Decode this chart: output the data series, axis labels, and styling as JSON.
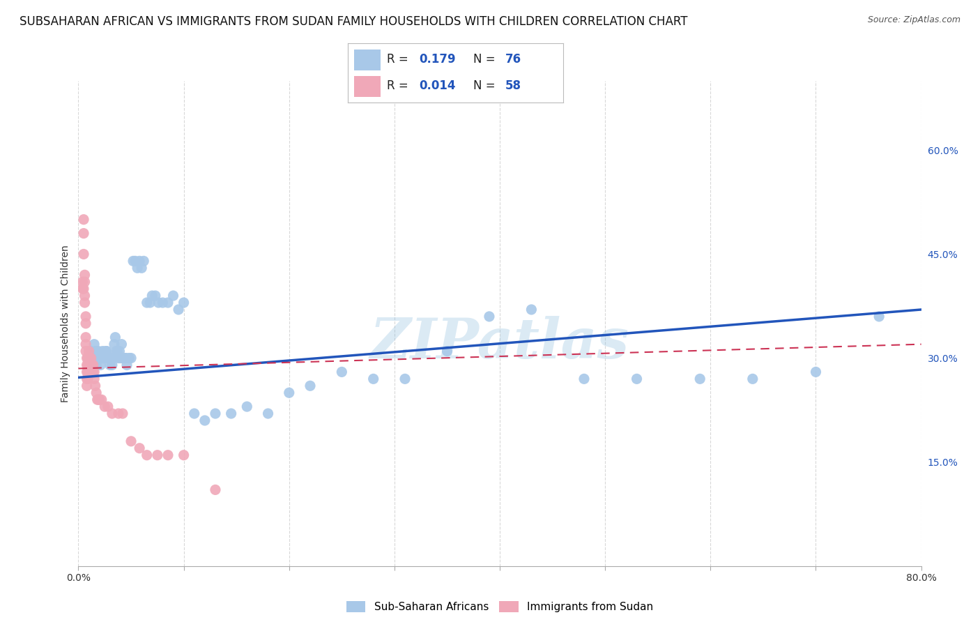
{
  "title": "SUBSAHARAN AFRICAN VS IMMIGRANTS FROM SUDAN FAMILY HOUSEHOLDS WITH CHILDREN CORRELATION CHART",
  "source": "Source: ZipAtlas.com",
  "ylabel": "Family Households with Children",
  "xlim": [
    0.0,
    0.8
  ],
  "ylim": [
    0.0,
    0.7
  ],
  "blue_color": "#a8c8e8",
  "pink_color": "#f0a8b8",
  "blue_line_color": "#2255bb",
  "pink_line_color": "#cc3355",
  "legend_label1": "Sub-Saharan Africans",
  "legend_label2": "Immigrants from Sudan",
  "watermark": "ZIPatlas",
  "blue_scatter_x": [
    0.01,
    0.012,
    0.013,
    0.014,
    0.015,
    0.015,
    0.016,
    0.016,
    0.017,
    0.018,
    0.019,
    0.02,
    0.021,
    0.022,
    0.023,
    0.024,
    0.025,
    0.026,
    0.027,
    0.028,
    0.029,
    0.03,
    0.031,
    0.032,
    0.033,
    0.034,
    0.035,
    0.036,
    0.037,
    0.038,
    0.039,
    0.04,
    0.041,
    0.042,
    0.043,
    0.044,
    0.045,
    0.046,
    0.048,
    0.05,
    0.052,
    0.054,
    0.056,
    0.058,
    0.06,
    0.062,
    0.065,
    0.068,
    0.07,
    0.073,
    0.076,
    0.08,
    0.085,
    0.09,
    0.095,
    0.1,
    0.11,
    0.12,
    0.13,
    0.145,
    0.16,
    0.18,
    0.2,
    0.22,
    0.25,
    0.28,
    0.31,
    0.35,
    0.39,
    0.43,
    0.48,
    0.53,
    0.59,
    0.64,
    0.7,
    0.76
  ],
  "blue_scatter_y": [
    0.3,
    0.31,
    0.3,
    0.29,
    0.32,
    0.3,
    0.3,
    0.31,
    0.29,
    0.3,
    0.31,
    0.3,
    0.29,
    0.3,
    0.31,
    0.3,
    0.3,
    0.31,
    0.31,
    0.3,
    0.3,
    0.29,
    0.3,
    0.29,
    0.3,
    0.32,
    0.33,
    0.31,
    0.31,
    0.3,
    0.31,
    0.3,
    0.32,
    0.3,
    0.3,
    0.3,
    0.3,
    0.29,
    0.3,
    0.3,
    0.44,
    0.44,
    0.43,
    0.44,
    0.43,
    0.44,
    0.38,
    0.38,
    0.39,
    0.39,
    0.38,
    0.38,
    0.38,
    0.39,
    0.37,
    0.38,
    0.22,
    0.21,
    0.22,
    0.22,
    0.23,
    0.22,
    0.25,
    0.26,
    0.28,
    0.27,
    0.27,
    0.31,
    0.36,
    0.37,
    0.27,
    0.27,
    0.27,
    0.27,
    0.28,
    0.36
  ],
  "pink_scatter_x": [
    0.004,
    0.004,
    0.005,
    0.005,
    0.005,
    0.005,
    0.006,
    0.006,
    0.006,
    0.006,
    0.007,
    0.007,
    0.007,
    0.007,
    0.007,
    0.008,
    0.008,
    0.008,
    0.008,
    0.008,
    0.009,
    0.009,
    0.009,
    0.009,
    0.01,
    0.01,
    0.01,
    0.01,
    0.011,
    0.011,
    0.011,
    0.012,
    0.012,
    0.012,
    0.013,
    0.013,
    0.014,
    0.014,
    0.015,
    0.015,
    0.016,
    0.017,
    0.018,
    0.019,
    0.02,
    0.022,
    0.025,
    0.028,
    0.032,
    0.038,
    0.042,
    0.05,
    0.058,
    0.065,
    0.075,
    0.085,
    0.1,
    0.13
  ],
  "pink_scatter_y": [
    0.41,
    0.4,
    0.5,
    0.48,
    0.45,
    0.4,
    0.42,
    0.41,
    0.39,
    0.38,
    0.36,
    0.35,
    0.33,
    0.32,
    0.31,
    0.3,
    0.29,
    0.28,
    0.27,
    0.26,
    0.3,
    0.29,
    0.28,
    0.27,
    0.31,
    0.3,
    0.29,
    0.28,
    0.3,
    0.29,
    0.28,
    0.3,
    0.29,
    0.28,
    0.29,
    0.28,
    0.29,
    0.28,
    0.28,
    0.27,
    0.26,
    0.25,
    0.24,
    0.24,
    0.24,
    0.24,
    0.23,
    0.23,
    0.22,
    0.22,
    0.22,
    0.18,
    0.17,
    0.16,
    0.16,
    0.16,
    0.16,
    0.11
  ],
  "blue_line_x": [
    0.0,
    0.8
  ],
  "blue_line_y": [
    0.272,
    0.37
  ],
  "pink_line_x": [
    0.0,
    0.8
  ],
  "pink_line_y": [
    0.285,
    0.32
  ],
  "grid_color": "#d8d8d8",
  "background_color": "#ffffff",
  "title_fontsize": 12,
  "axis_label_fontsize": 10,
  "tick_fontsize": 10
}
